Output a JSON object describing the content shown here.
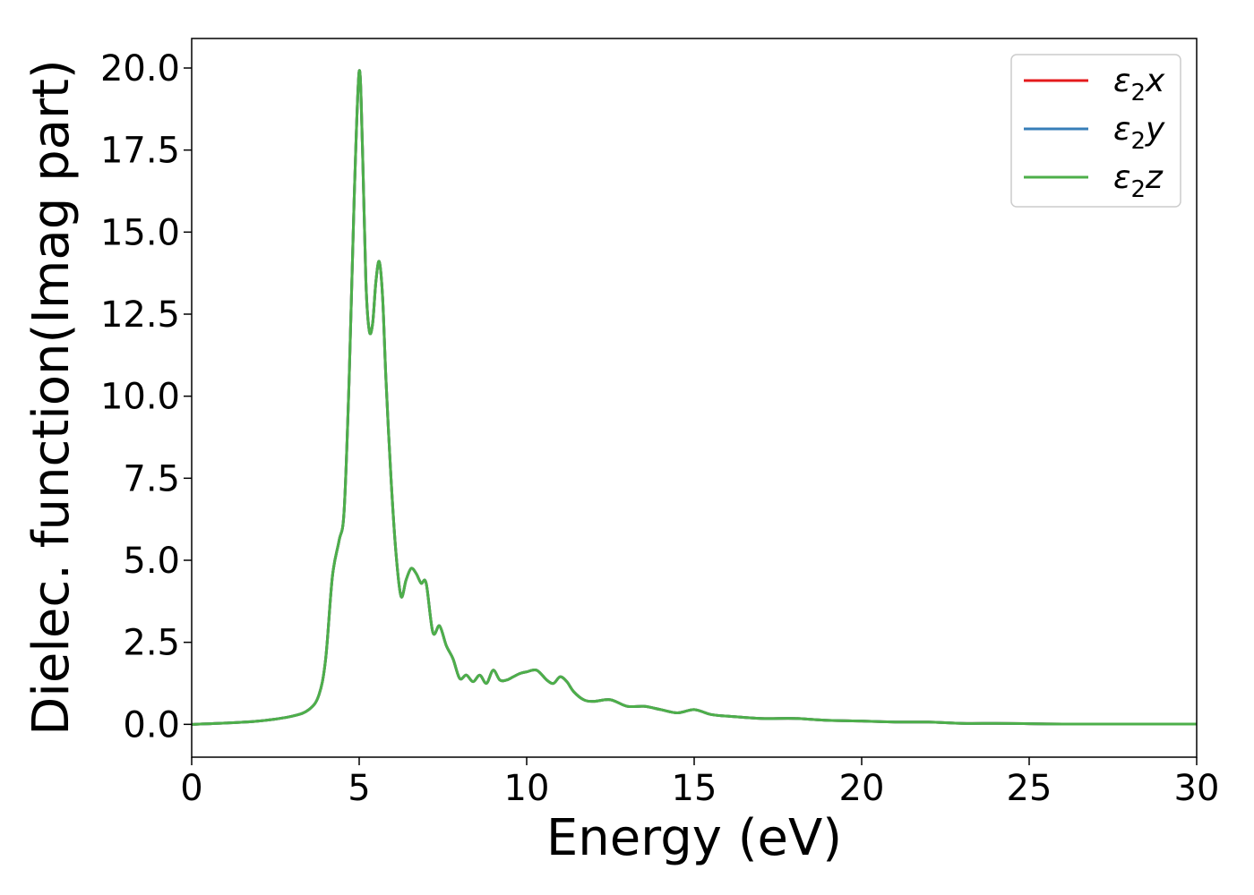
{
  "chart_data": {
    "type": "line",
    "xlabel": "Energy (eV)",
    "ylabel": "Dielec. function(Imag part)",
    "xlim": [
      0,
      30
    ],
    "ylim": [
      -1.0,
      20.9
    ],
    "x_ticks": [
      "0",
      "5",
      "10",
      "15",
      "20",
      "25",
      "30"
    ],
    "y_ticks": [
      "0.0",
      "2.5",
      "5.0",
      "7.5",
      "10.0",
      "12.5",
      "15.0",
      "17.5",
      "20.0"
    ],
    "grid": false,
    "legend_position": "top-right",
    "series": [
      {
        "name_base": "ε",
        "name_sub": "2",
        "name_suffix": "x",
        "color": "#e41a1c"
      },
      {
        "name_base": "ε",
        "name_sub": "2",
        "name_suffix": "y",
        "color": "#377eb8"
      },
      {
        "name_base": "ε",
        "name_sub": "2",
        "name_suffix": "z",
        "color": "#4daf4a"
      }
    ],
    "x": [
      0,
      1,
      2,
      3,
      3.5,
      3.8,
      4.0,
      4.2,
      4.4,
      4.55,
      4.7,
      4.85,
      5.0,
      5.1,
      5.2,
      5.3,
      5.4,
      5.5,
      5.6,
      5.7,
      5.8,
      5.95,
      6.1,
      6.25,
      6.4,
      6.55,
      6.7,
      6.85,
      7.0,
      7.2,
      7.4,
      7.6,
      7.8,
      8.0,
      8.2,
      8.4,
      8.6,
      8.8,
      9.0,
      9.2,
      9.4,
      9.6,
      9.8,
      10.0,
      10.3,
      10.6,
      10.8,
      11.0,
      11.2,
      11.4,
      11.7,
      12.0,
      12.5,
      13.0,
      13.5,
      14.0,
      14.5,
      15.0,
      15.5,
      16.0,
      17.0,
      18.0,
      19.0,
      20.0,
      21.0,
      22.0,
      23.0,
      24.0,
      25.0,
      26.0,
      27.0,
      28.0,
      29.0,
      30.0
    ],
    "y": [
      0.0,
      0.04,
      0.1,
      0.25,
      0.45,
      0.9,
      2.0,
      4.5,
      5.6,
      6.5,
      10.5,
      16.0,
      19.9,
      17.5,
      13.5,
      12.0,
      12.2,
      13.5,
      14.1,
      13.0,
      10.5,
      7.5,
      5.2,
      3.9,
      4.4,
      4.75,
      4.6,
      4.3,
      4.3,
      2.8,
      3.0,
      2.4,
      2.0,
      1.4,
      1.5,
      1.3,
      1.5,
      1.25,
      1.65,
      1.35,
      1.35,
      1.45,
      1.55,
      1.6,
      1.65,
      1.35,
      1.25,
      1.45,
      1.3,
      1.0,
      0.75,
      0.7,
      0.75,
      0.55,
      0.55,
      0.45,
      0.35,
      0.45,
      0.3,
      0.25,
      0.18,
      0.18,
      0.12,
      0.1,
      0.07,
      0.07,
      0.03,
      0.03,
      0.02,
      0.01,
      0.01,
      0.01,
      0.01,
      0.01
    ]
  }
}
